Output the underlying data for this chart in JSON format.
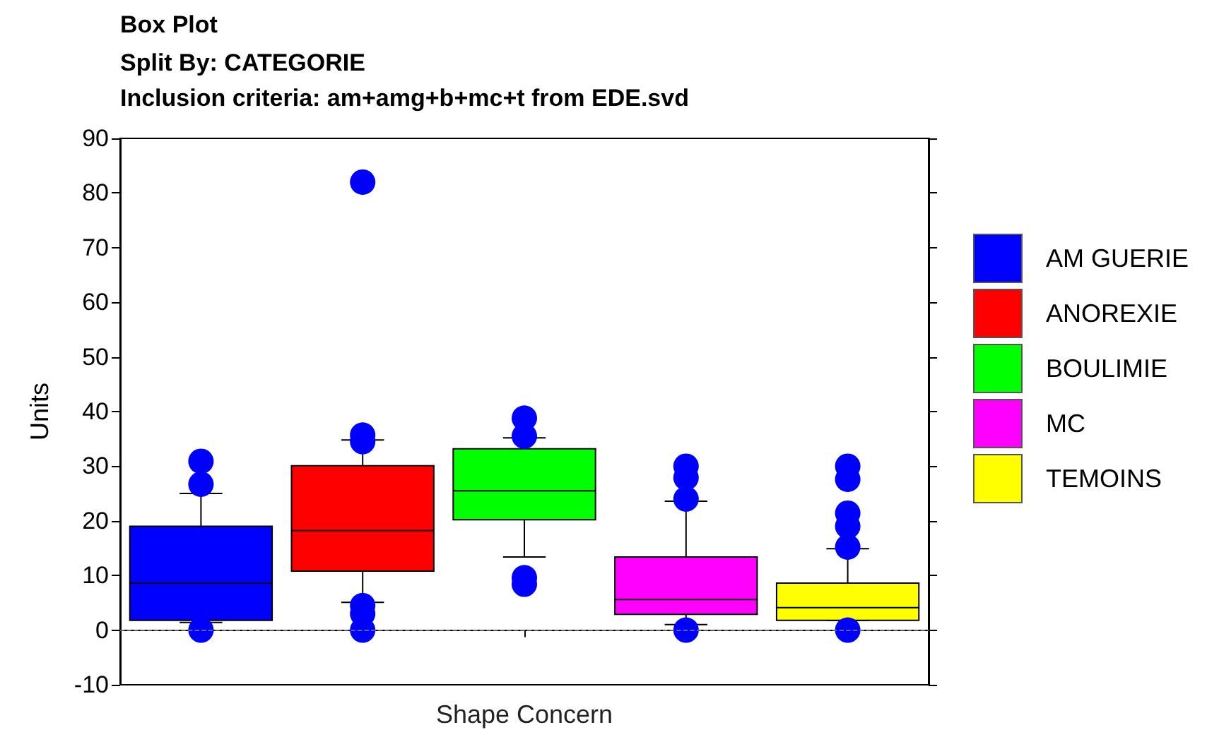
{
  "chart_data": {
    "type": "box",
    "title": "Box Plot",
    "subtitle": "Split By: CATEGORIE\nInclusion criteria: am+amg+b+mc+t from EDE.svd",
    "ylabel": "Units",
    "categories": [
      "Shape Concern"
    ],
    "series": [
      {
        "name": "AM GUERIE",
        "color": "#0000ff",
        "boxes": [
          {
            "low": 1.4,
            "q1": 1.8,
            "median": 8.6,
            "q3": 19.0,
            "high": 25.0,
            "outliers": [
              30.9,
              26.7,
              0
            ]
          }
        ]
      },
      {
        "name": "ANOREXIE",
        "color": "#ff0000",
        "boxes": [
          {
            "low": 5.1,
            "q1": 10.8,
            "median": 18.2,
            "q3": 30.1,
            "high": 34.8,
            "outliers": [
              82,
              35.7,
              34.5,
              4.5,
              3,
              0
            ]
          }
        ]
      },
      {
        "name": "BOULIMIE",
        "color": "#00ff00",
        "boxes": [
          {
            "low": 13.4,
            "q1": 20.2,
            "median": 25.5,
            "q3": 33.2,
            "high": 35.2,
            "outliers": [
              38.8,
              35.5,
              9.6,
              8.4
            ]
          }
        ]
      },
      {
        "name": "MC",
        "color": "#ff00ff",
        "boxes": [
          {
            "low": 1.0,
            "q1": 2.9,
            "median": 5.6,
            "q3": 13.4,
            "high": 23.6,
            "outliers": [
              30,
              27.9,
              24,
              0
            ]
          }
        ]
      },
      {
        "name": "TEMOINS",
        "color": "#ffff00",
        "boxes": [
          {
            "low": 1.8,
            "q1": 1.8,
            "median": 4.1,
            "q3": 8.6,
            "high": 14.9,
            "outliers": [
              30,
              27.6,
              21.4,
              19,
              15.2,
              0
            ]
          }
        ]
      }
    ],
    "ylim": [
      -10,
      90
    ],
    "yticks": [
      -10,
      0,
      10,
      20,
      30,
      40,
      50,
      60,
      70,
      80,
      90
    ],
    "ref_lines": [
      {
        "axis": "y",
        "value": 0,
        "color": "#808080",
        "line_style": "dashed"
      }
    ],
    "marker": "circle",
    "grid": false,
    "legend": "right"
  }
}
